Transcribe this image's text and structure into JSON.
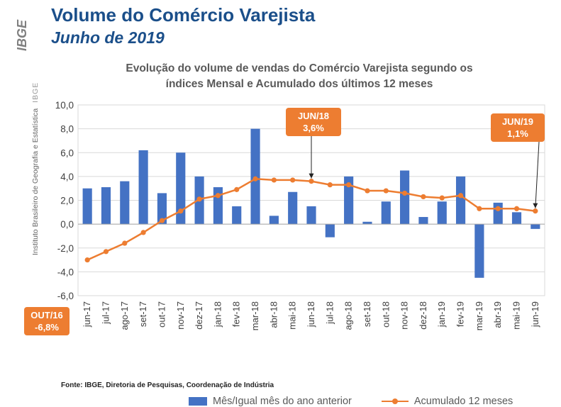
{
  "header": {
    "title": "Volume do Comércio Varejista",
    "subtitle": "Junho de 2019"
  },
  "sidebar": {
    "logo_text": "IBGE",
    "institute": "Instituto Brasileiro de Geografia e Estatística",
    "institute_abbr": "IBGE"
  },
  "source": "Fonte: IBGE, Diretoria de Pesquisas, Coordenação de Indústria",
  "colors": {
    "bar": "#4472c4",
    "line": "#ed7d31",
    "title": "#1b4f8a",
    "callout": "#ed7d31"
  },
  "chart_data": {
    "type": "bar+line",
    "title_line1": "Evolução do volume de vendas do Comércio Varejista segundo os",
    "title_line2": "índices Mensal e Acumulado dos últimos 12 meses",
    "categories": [
      "jun-17",
      "jul-17",
      "ago-17",
      "set-17",
      "out-17",
      "nov-17",
      "dez-17",
      "jan-18",
      "fev-18",
      "mar-18",
      "abr-18",
      "mai-18",
      "jun-18",
      "jul-18",
      "ago-18",
      "set-18",
      "out-18",
      "nov-18",
      "dez-18",
      "jan-19",
      "fev-19",
      "mar-19",
      "abr-19",
      "mai-19",
      "jun-19"
    ],
    "series": [
      {
        "name": "Mês/Igual mês do ano anterior",
        "kind": "bar",
        "values": [
          3.0,
          3.1,
          3.6,
          6.2,
          2.6,
          6.0,
          4.0,
          3.1,
          1.5,
          8.0,
          0.7,
          2.7,
          1.5,
          -1.1,
          4.0,
          0.2,
          1.9,
          4.5,
          0.6,
          1.9,
          4.0,
          -4.5,
          1.8,
          1.0,
          -0.4
        ]
      },
      {
        "name": "Acumulado 12 meses",
        "kind": "line",
        "values": [
          -3.0,
          -2.3,
          -1.6,
          -0.7,
          0.3,
          1.1,
          2.1,
          2.4,
          2.9,
          3.8,
          3.7,
          3.7,
          3.6,
          3.3,
          3.3,
          2.8,
          2.8,
          2.6,
          2.3,
          2.2,
          2.4,
          1.3,
          1.3,
          1.3,
          1.1
        ]
      }
    ],
    "ylim": [
      -6.0,
      10.0
    ],
    "yticks": [
      "-6,0",
      "-4,0",
      "-2,0",
      "0,0",
      "2,0",
      "4,0",
      "6,0",
      "8,0",
      "10,0"
    ],
    "ytick_values": [
      -6,
      -4,
      -2,
      0,
      2,
      4,
      6,
      8,
      10
    ],
    "grid": true,
    "legend_position": "bottom",
    "annotations": [
      {
        "label_line1": "JUN/18",
        "label_line2": "3,6%",
        "category": "jun-18",
        "value": 3.6
      },
      {
        "label_line1": "JUN/19",
        "label_line2": "1,1%",
        "category": "jun-19",
        "value": 1.1
      },
      {
        "label_line1": "OUT/16",
        "label_line2": "-6,8%",
        "category": "",
        "value": -6.8
      }
    ]
  }
}
